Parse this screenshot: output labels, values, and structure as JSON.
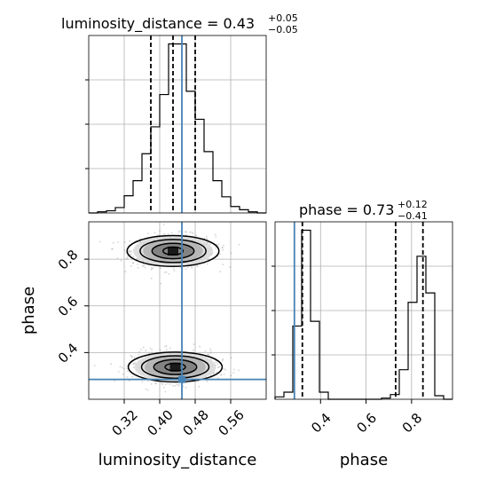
{
  "chart_data": {
    "type": "corner",
    "parameters": [
      "luminosity_distance",
      "phase"
    ],
    "truth": {
      "luminosity_distance": 0.45,
      "phase": 0.285
    },
    "luminosity_distance_hist": {
      "type": "histogram",
      "title_prefix": "luminosity_distance = 0.43",
      "title_sup": "+0.05",
      "title_sub": "−0.05",
      "xlim": [
        0.24,
        0.64
      ],
      "xticks": [
        "0.32",
        "0.40",
        "0.48",
        "0.56"
      ],
      "quantiles": [
        0.38,
        0.43,
        0.48
      ],
      "bin_edges": [
        0.24,
        0.26,
        0.28,
        0.3,
        0.32,
        0.34,
        0.36,
        0.38,
        0.4,
        0.42,
        0.44,
        0.46,
        0.48,
        0.5,
        0.52,
        0.54,
        0.56,
        0.58,
        0.6,
        0.62,
        0.64
      ],
      "counts": [
        0,
        1,
        2,
        5,
        16,
        30,
        55,
        80,
        110,
        157,
        157,
        113,
        87,
        57,
        30,
        15,
        6,
        3,
        1,
        0
      ]
    },
    "phase_hist": {
      "type": "histogram",
      "title_prefix": "phase = 0.73",
      "title_sup": "+0.12",
      "title_sub": "−0.41",
      "xlim": [
        0.2,
        0.98
      ],
      "xticks": [
        "0.4",
        "0.6",
        "0.8"
      ],
      "quantiles": [
        0.32,
        0.73,
        0.85
      ],
      "bin_edges": [
        0.2,
        0.239,
        0.278,
        0.317,
        0.356,
        0.395,
        0.434,
        0.473,
        0.512,
        0.551,
        0.59,
        0.629,
        0.668,
        0.707,
        0.746,
        0.785,
        0.824,
        0.863,
        0.902,
        0.941,
        0.98
      ],
      "counts": [
        2,
        6,
        62,
        143,
        66,
        6,
        0,
        0,
        0,
        0,
        0,
        0,
        1,
        4,
        25,
        82,
        121,
        90,
        3,
        0
      ]
    },
    "joint": {
      "type": "scatter-density",
      "xlabel": "luminosity_distance",
      "ylabel": "phase",
      "xlim": [
        0.24,
        0.64
      ],
      "ylim": [
        0.2,
        0.96
      ],
      "xticks": [
        "0.32",
        "0.40",
        "0.48",
        "0.56"
      ],
      "yticks": [
        "0.4",
        "0.6",
        "0.8"
      ],
      "modes": [
        {
          "x": 0.43,
          "y": 0.835,
          "sx": 0.045,
          "sy": 0.033,
          "weight": 0.55
        },
        {
          "x": 0.435,
          "y": 0.338,
          "sx": 0.046,
          "sy": 0.032,
          "weight": 0.45
        }
      ],
      "contour_levels_sigma": [
        0.5,
        1.0,
        1.5,
        2.0
      ]
    }
  },
  "colors": {
    "truth": "#4682b4",
    "hist": "#000000",
    "grid": "#b0b0b0",
    "points": "#808080"
  }
}
